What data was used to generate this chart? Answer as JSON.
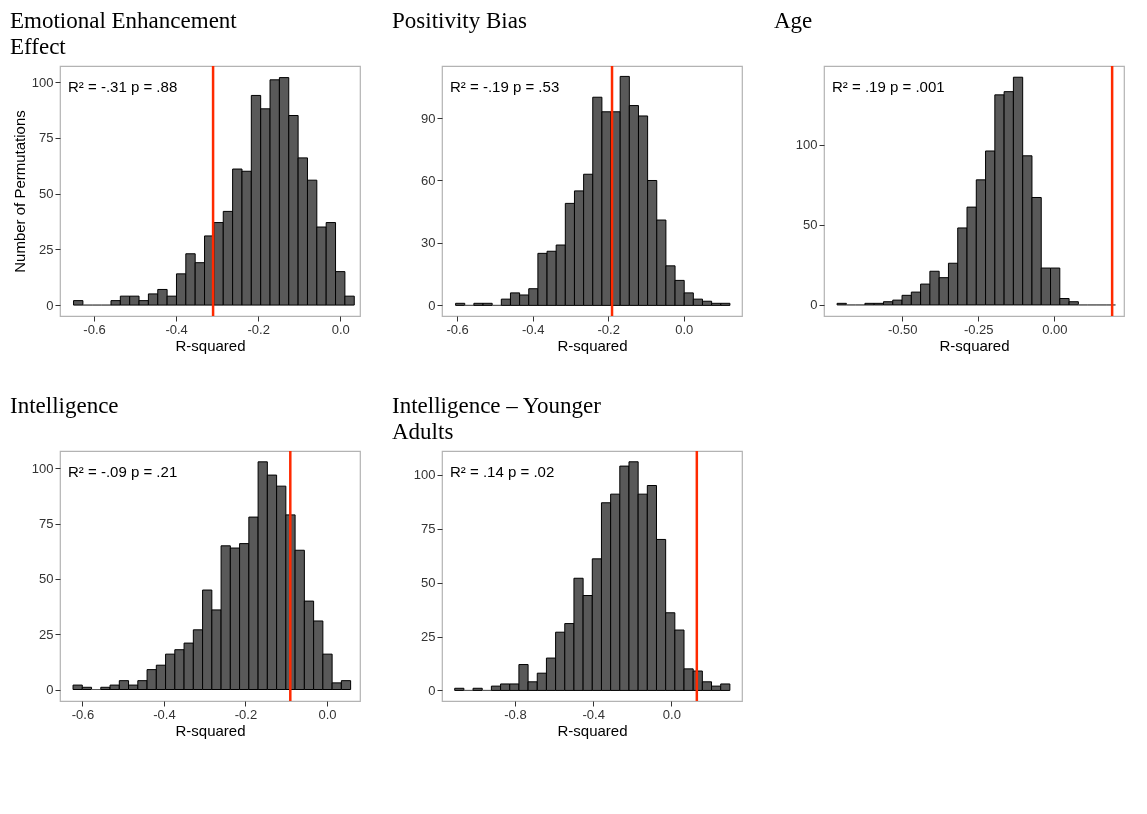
{
  "chart_data": [
    {
      "type": "histogram",
      "title": "Emotional Enhancement Effect",
      "xlabel": "R-squared",
      "ylabel": "Number of Permutations",
      "annotations": [
        "R² = -.31    p = .88"
      ],
      "color": "#595959",
      "bins": [
        -0.65,
        -0.6272,
        -0.6044,
        -0.5816,
        -0.5588,
        -0.536,
        -0.5132,
        -0.4904,
        -0.4676,
        -0.4448,
        -0.422,
        -0.3992,
        -0.3764,
        -0.3536,
        -0.3308,
        -0.308,
        -0.2852,
        -0.2624,
        -0.2396,
        -0.2168,
        -0.194,
        -0.1712,
        -0.1484,
        -0.1256,
        -0.1028,
        -0.08,
        -0.0572,
        -0.0344,
        -0.0116,
        0.0112,
        0.034
      ],
      "values": [
        2,
        0,
        0,
        0,
        2,
        4,
        4,
        2,
        5,
        7,
        4,
        14,
        23,
        19,
        31,
        37,
        42,
        61,
        60,
        94,
        88,
        101,
        102,
        85,
        66,
        56,
        35,
        37,
        15,
        4
      ],
      "xlim": [
        -0.683,
        0.048
      ],
      "ylim": [
        -4.9,
        107.2
      ],
      "xticks": [
        -0.6,
        -0.4,
        -0.2,
        {
          "value": 0,
          "label": "0.0"
        }
      ],
      "yticks": [
        0,
        25,
        50,
        75,
        100
      ],
      "grid": false,
      "ref_lines": [
        {
          "axis": "x",
          "value": -0.31,
          "color": "#ff2a00"
        }
      ]
    },
    {
      "type": "histogram",
      "title": "Positivity Bias",
      "xlabel": "R-squared",
      "annotations": [
        "R² = -.19   p = .53"
      ],
      "color": "#595959",
      "bins": [
        -0.604,
        -0.5798,
        -0.5556,
        -0.5314,
        -0.5072,
        -0.483,
        -0.4588,
        -0.4346,
        -0.4104,
        -0.3862,
        -0.362,
        -0.3378,
        -0.3136,
        -0.2894,
        -0.2652,
        -0.241,
        -0.2168,
        -0.1926,
        -0.1684,
        -0.1442,
        -0.12,
        -0.0958,
        -0.0716,
        -0.0474,
        -0.0232,
        0.001,
        0.0252,
        0.0494,
        0.0736,
        0.0978,
        0.122
      ],
      "values": [
        1,
        0,
        1,
        1,
        0,
        3,
        6,
        5,
        8,
        25,
        26,
        29,
        49,
        55,
        63,
        100,
        93,
        93,
        110,
        96,
        91,
        60,
        41,
        19,
        12,
        6,
        3,
        2,
        1,
        1
      ],
      "xlim": [
        -0.64,
        0.154
      ],
      "ylim": [
        -5.1,
        115
      ],
      "xticks": [
        -0.6,
        -0.4,
        -0.2,
        {
          "value": 0,
          "label": "0.0"
        }
      ],
      "yticks": [
        0,
        30,
        60,
        90
      ],
      "grid": false,
      "ref_lines": [
        {
          "axis": "x",
          "value": -0.19,
          "color": "#ff2a00"
        }
      ]
    },
    {
      "type": "histogram",
      "title": "Age",
      "xlabel": "R-squared",
      "annotations": [
        "R² = .19   p = .001"
      ],
      "color": "#595959",
      "bins": [
        -0.714,
        -0.6835,
        -0.653,
        -0.6225,
        -0.592,
        -0.5615,
        -0.531,
        -0.5005,
        -0.47,
        -0.4395,
        -0.409,
        -0.3785,
        -0.348,
        -0.3175,
        -0.287,
        -0.2565,
        -0.226,
        -0.1955,
        -0.165,
        -0.1345,
        -0.104,
        -0.0735,
        -0.043,
        -0.0125,
        0.018,
        0.0485,
        0.079,
        0.1095,
        0.14,
        0.1705,
        0.201
      ],
      "values": [
        1,
        0,
        0,
        1,
        1,
        2,
        3,
        6,
        8,
        13,
        21,
        17,
        26,
        48,
        61,
        78,
        96,
        131,
        133,
        142,
        93,
        67,
        23,
        23,
        4,
        2,
        0,
        0,
        0,
        0
      ],
      "xlim": [
        -0.757,
        0.229
      ],
      "ylim": [
        -6.9,
        149
      ],
      "xticks": [
        {
          "value": -0.5,
          "label": "-0.50"
        },
        {
          "value": -0.25,
          "label": "-0.25"
        },
        {
          "value": 0,
          "label": "0.00"
        }
      ],
      "yticks": [
        0,
        50,
        100
      ],
      "grid": false,
      "ref_lines": [
        {
          "axis": "x",
          "value": 0.19,
          "color": "#ff2a00"
        }
      ]
    },
    {
      "type": "histogram",
      "title": "Intelligence",
      "xlabel": "R-squared",
      "annotations": [
        "R² = -.09  p = .21"
      ],
      "color": "#595959",
      "bins": [
        -0.623,
        -0.6003,
        -0.5776,
        -0.5549,
        -0.5322,
        -0.5095,
        -0.4868,
        -0.4641,
        -0.4414,
        -0.4187,
        -0.396,
        -0.3733,
        -0.3506,
        -0.3279,
        -0.3052,
        -0.2825,
        -0.2598,
        -0.2371,
        -0.2144,
        -0.1917,
        -0.169,
        -0.1463,
        -0.1236,
        -0.1009,
        -0.0782,
        -0.0555,
        -0.0328,
        -0.0101,
        0.0126,
        0.0353,
        0.058
      ],
      "values": [
        2,
        1,
        0,
        1,
        2,
        4,
        2,
        4,
        9,
        11,
        16,
        18,
        21,
        27,
        45,
        36,
        65,
        64,
        66,
        78,
        103,
        97,
        92,
        79,
        63,
        40,
        31,
        16,
        3,
        4
      ],
      "xlim": [
        -0.655,
        0.081
      ],
      "ylim": [
        -5.2,
        107.9
      ],
      "xticks": [
        -0.6,
        -0.4,
        -0.2,
        {
          "value": 0,
          "label": "0.0"
        }
      ],
      "yticks": [
        0,
        25,
        50,
        75,
        100
      ],
      "grid": false,
      "ref_lines": [
        {
          "axis": "x",
          "value": -0.09,
          "color": "#ff2a00"
        }
      ]
    },
    {
      "type": "histogram",
      "title": "Intelligence – Younger Adults",
      "xlabel": "R-squared",
      "annotations": [
        "R² = .14   p = .02"
      ],
      "color": "#595959",
      "bins": [
        -1.108,
        -1.0611,
        -1.0142,
        -0.9673,
        -0.9204,
        -0.8735,
        -0.8266,
        -0.7797,
        -0.7328,
        -0.6859,
        -0.639,
        -0.5921,
        -0.5452,
        -0.4983,
        -0.4514,
        -0.4045,
        -0.3576,
        -0.3107,
        -0.2638,
        -0.2169,
        -0.17,
        -0.1231,
        -0.0762,
        -0.0293,
        0.0176,
        0.0645,
        0.1114,
        0.1583,
        0.2052,
        0.2521,
        0.299
      ],
      "values": [
        1,
        0,
        1,
        0,
        2,
        3,
        3,
        12,
        4,
        8,
        15,
        27,
        31,
        52,
        44,
        61,
        87,
        91,
        104,
        106,
        91,
        95,
        70,
        36,
        28,
        10,
        9,
        4,
        2,
        3
      ],
      "xlim": [
        -1.173,
        0.361
      ],
      "ylim": [
        -4.9,
        111
      ],
      "xticks": [
        -0.8,
        -0.4,
        {
          "value": 0,
          "label": "0.0"
        }
      ],
      "yticks": [
        0,
        25,
        50,
        75,
        100
      ],
      "grid": false,
      "ref_lines": [
        {
          "axis": "x",
          "value": 0.13,
          "color": "#ff2a00"
        }
      ]
    }
  ]
}
